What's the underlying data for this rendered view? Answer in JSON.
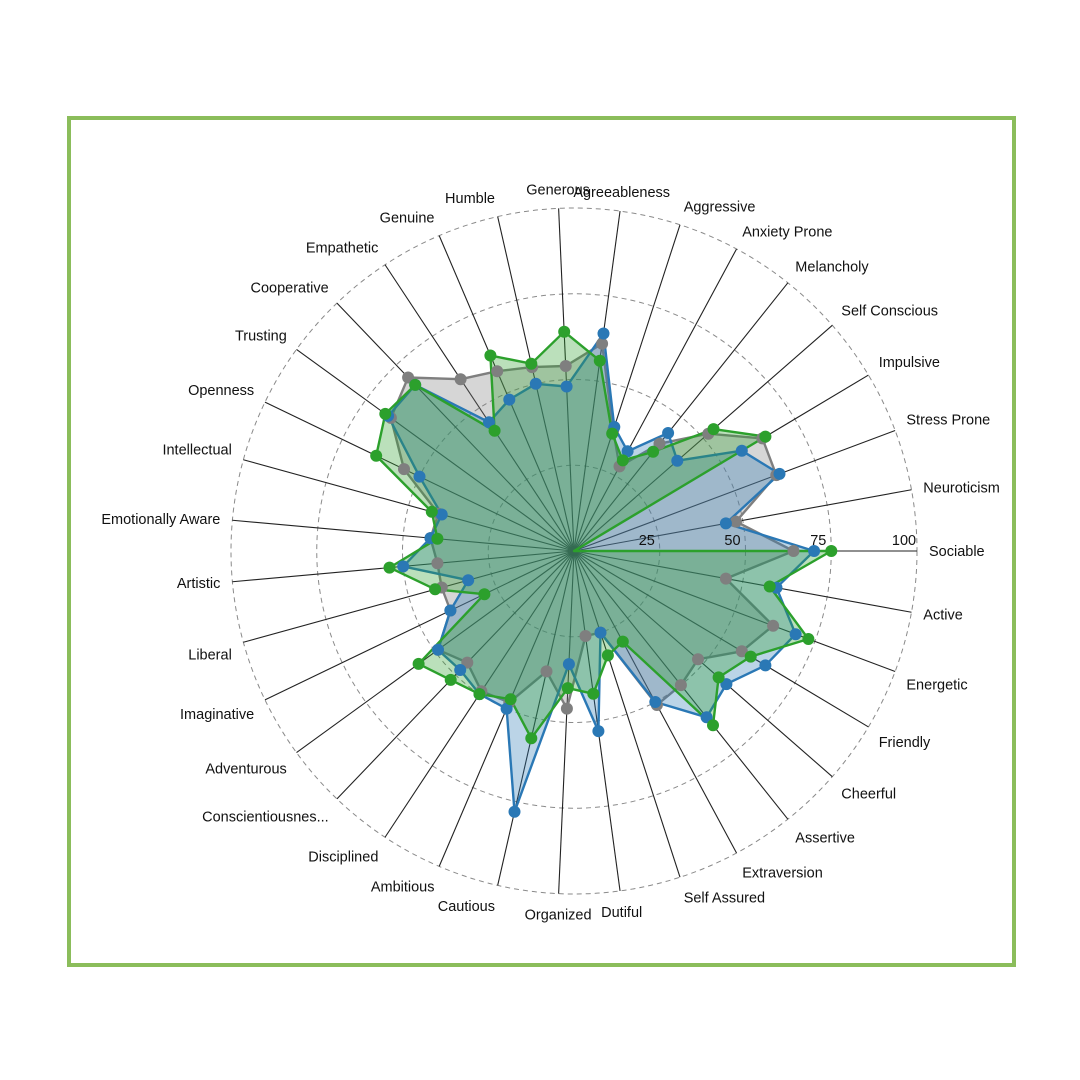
{
  "chart_data": {
    "type": "radar",
    "title": "",
    "rmax": 100,
    "ticks": [
      25,
      50,
      75,
      100
    ],
    "grid": true,
    "legend": "none",
    "categories": [
      "Sociable",
      "Neuroticism",
      "Stress Prone",
      "Impulsive",
      "Self Conscious",
      "Melancholy",
      "Anxiety Prone",
      "Aggressive",
      "Agreeableness",
      "Generous",
      "Humble",
      "Genuine",
      "Empathetic",
      "Cooperative",
      "Trusting",
      "Openness",
      "Intellectual",
      "Emotionally Aware",
      "Artistic",
      "Liberal",
      "Imaginative",
      "Adventurous",
      "Conscientiousnes...",
      "Disciplined",
      "Ambitious",
      "Cautious",
      "Organized",
      "Dutiful",
      "Self Assured",
      "Extraversion",
      "Assertive",
      "Cheerful",
      "Friendly",
      "Energetic",
      "Active"
    ],
    "series": [
      {
        "color": "#7f7f7f",
        "values": [
          64,
          48,
          63,
          64,
          52,
          40,
          28,
          37,
          61,
          54,
          55,
          57,
          60,
          70,
          66,
          55,
          41,
          42,
          40,
          40,
          40,
          49,
          45,
          49,
          48,
          36,
          46,
          25,
          25,
          51,
          50,
          48,
          57,
          62,
          45
        ]
      },
      {
        "color": "#2a78b5",
        "values": [
          70,
          45,
          64,
          57,
          40,
          44,
          33,
          38,
          64,
          48,
          50,
          48,
          45,
          67,
          67,
          50,
          40,
          42,
          50,
          32,
          40,
          49,
          48,
          50,
          50,
          78,
          33,
          53,
          25,
          50,
          62,
          59,
          65,
          69,
          60
        ]
      },
      {
        "color": "#2ca02c",
        "values": [
          75,
          0,
          0,
          65,
          54,
          37,
          30,
          36,
          56,
          64,
          56,
          62,
          42,
          67,
          68,
          64,
          43,
          40,
          54,
          42,
          29,
          56,
          52,
          50,
          47,
          56,
          40,
          42,
          32,
          30,
          65,
          56,
          60,
          73,
          58
        ]
      }
    ]
  }
}
